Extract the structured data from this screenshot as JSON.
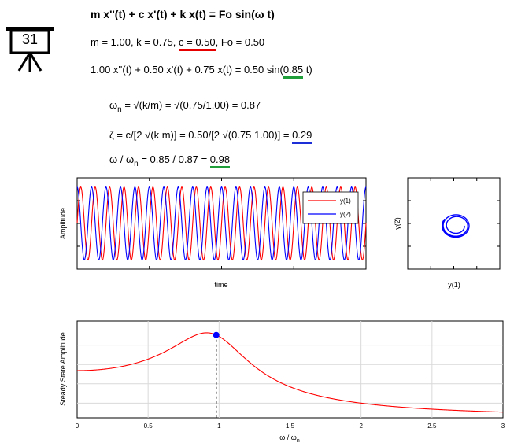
{
  "badge": {
    "number": "31"
  },
  "equations": {
    "title": "m x''(t) + c x'(t) + k x(t) = Fo sin(ω t)",
    "params_pre": "m = 1.00, k = 0.75, ",
    "params_c": "c = 0.50",
    "params_post": ", Fo = 0.50",
    "specific_pre": "1.00 x''(t) + 0.50 x'(t) + 0.75 x(t) = 0.50 sin(",
    "specific_w": "0.85",
    "specific_post": " t)",
    "wn_lhs": "ω",
    "wn_sub": "n",
    "wn_rhs": " = √(k/m) = √(0.75/1.00) = 0.87",
    "zeta_pre": "ζ = c/[2 √(k m)] = 0.50/[2 √(0.75 1.00)] = ",
    "zeta_val": "0.29",
    "ratio_lhs": "ω / ω",
    "ratio_sub": "n",
    "ratio_mid": " = 0.85 / 0.87 = ",
    "ratio_val": "0.98"
  },
  "colors": {
    "red": "#ff0000",
    "blue": "#0000ff",
    "green": "#1f9e3a",
    "underline_red": "#e60000",
    "underline_blue": "#1d2fd6"
  },
  "chart_data": [
    {
      "type": "line",
      "id": "time_response",
      "xlabel": "time",
      "ylabel": "Amplitude",
      "series": [
        {
          "name": "y(1)",
          "color": "#ff0000",
          "amplitude": 0.8,
          "cycles": 20,
          "phase": 0.0
        },
        {
          "name": "y(2)",
          "color": "#0000ff",
          "amplitude": 0.8,
          "cycles": 20,
          "phase": 1.571
        }
      ],
      "legend": "top-right",
      "grid": false
    },
    {
      "type": "line",
      "id": "phase_portrait",
      "xlabel": "y(1)",
      "ylabel": "y(2)",
      "series": [
        {
          "color": "#0000ff",
          "shape": "spiral"
        }
      ],
      "grid": false
    },
    {
      "type": "line",
      "id": "frequency_response",
      "xlabel": "ω / ω",
      "xlabel_sub": "n",
      "ylabel": "Steady State Amplitude",
      "xlim": [
        0,
        3
      ],
      "xticks": [
        "0",
        "0.5",
        "1",
        "1.5",
        "2",
        "2.5",
        "3"
      ],
      "xtick_values": [
        0,
        0.5,
        1,
        1.5,
        2,
        2.5,
        3
      ],
      "zeta": 0.29,
      "marker": {
        "x": 0.98
      },
      "line_color": "#ff0000",
      "marker_color": "#0000ff",
      "grid": true
    }
  ]
}
